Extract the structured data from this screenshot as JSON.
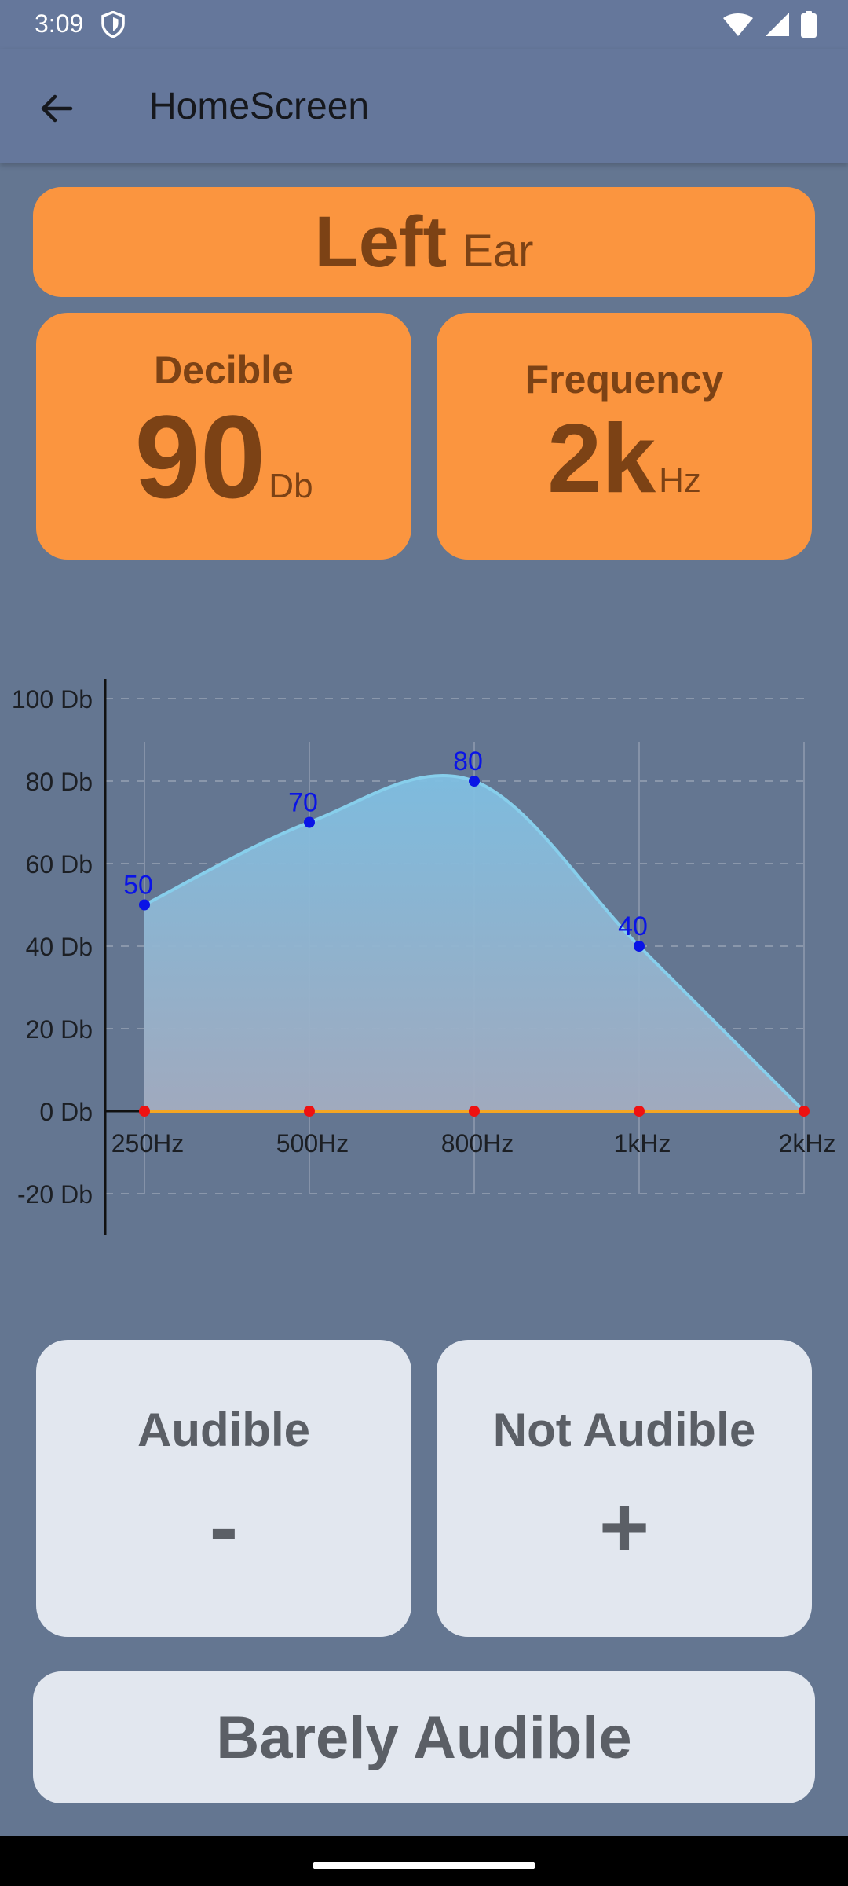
{
  "status_bar": {
    "time": "3:09"
  },
  "app_bar": {
    "title": "HomeScreen"
  },
  "ear": {
    "side": "Left",
    "word": "Ear"
  },
  "decibel_card": {
    "label": "Decible",
    "value": "90",
    "unit": "Db"
  },
  "frequency_card": {
    "label": "Frequency",
    "value": "2k",
    "unit": "Hz"
  },
  "chart_data": {
    "type": "area",
    "categories": [
      "250Hz",
      "500Hz",
      "800Hz",
      "1kHz",
      "2kHz"
    ],
    "series": [
      {
        "values": [
          50,
          70,
          80,
          40,
          0
        ],
        "data_labels": [
          "50",
          "70",
          "80",
          "40",
          ""
        ],
        "color": "#87ceeb"
      },
      {
        "values": [
          0,
          0,
          0,
          0,
          0
        ],
        "color": "#f5a623"
      }
    ],
    "y_ticks": [
      "100 Db",
      "80 Db",
      "60 Db",
      "40 Db",
      "20 Db",
      "0 Db",
      "-20 Db"
    ],
    "ylim": [
      -20,
      100
    ],
    "grid": true
  },
  "actions": {
    "audible": {
      "label": "Audible",
      "sign": "-"
    },
    "not_audible": {
      "label": "Not Audible",
      "sign": "+"
    },
    "barely_audible": {
      "label": "Barely Audible"
    }
  }
}
